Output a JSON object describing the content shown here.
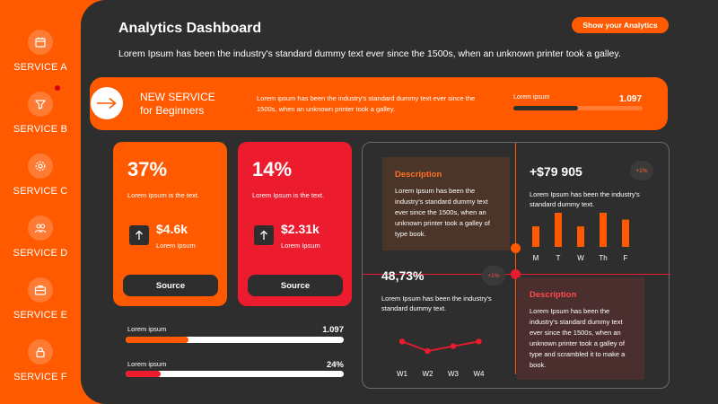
{
  "sidebar": {
    "items": [
      {
        "label": "SERVICE A",
        "icon": "calendar-icon"
      },
      {
        "label": "SERVICE B",
        "icon": "filter-icon"
      },
      {
        "label": "SERVICE C",
        "icon": "settings-icon"
      },
      {
        "label": "SERVICE D",
        "icon": "users-icon"
      },
      {
        "label": "SERVICE E",
        "icon": "briefcase-icon"
      },
      {
        "label": "SERVICE F",
        "icon": "lock-icon"
      }
    ]
  },
  "header": {
    "title": "Analytics Dashboard",
    "subtitle": "Lorem Ipsum has been the industry's standard dummy text ever since the 1500s, when an unknown printer took a galley.",
    "cta_label": "Show your Analytics"
  },
  "banner": {
    "title_line1": "NEW SERVICE",
    "title_line2": "for Beginners",
    "text": "Lorem ipsum has been the industry's standard dummy text ever since the 1500s, when an unknown printer took a galley.",
    "stat_label": "Lorem ipsum",
    "stat_value": "1.097",
    "progress": 0.5
  },
  "cards": [
    {
      "percent": "37%",
      "text": "Lorem Ipsum is the text.",
      "amount": "$4.6k",
      "amount_label": "Lorem Ipsum",
      "button": "Source",
      "color": "#ff5a00"
    },
    {
      "percent": "14%",
      "text": "Lorem Ipsum is the text.",
      "amount": "$2.31k",
      "amount_label": "Lorem Ipsum",
      "button": "Source",
      "color": "#ec1b2d"
    }
  ],
  "progress_rows": [
    {
      "label": "Lorem ipsum",
      "value": "1.097",
      "fraction": 0.29,
      "color": "#ff5a00"
    },
    {
      "label": "Lorem ipsum",
      "value": "24%",
      "fraction": 0.16,
      "color": "#ec1b2d"
    }
  ],
  "panel": {
    "desc1": {
      "title": "Description",
      "text": "Lorem Ipsum has been the industry's standard dummy text ever since the 1500s, when an unknown printer took a galley of type book."
    },
    "desc2": {
      "title": "Description",
      "text": "Lorem Ipsum has been the industry's standard dummy text ever since the 1500s, when an unknown printer took a galley of type and scrambled it to make a book."
    },
    "metric1": {
      "value": "+$79 905",
      "badge": "+1%",
      "text": "Lorem Ipsum has been the industry's standard dummy text."
    },
    "metric2": {
      "value": "48,73%",
      "badge": "+1%",
      "text": "Lorem Ipsum has been the industry's standard dummy text."
    }
  },
  "chart_data": [
    {
      "type": "bar",
      "categories": [
        "M",
        "T",
        "W",
        "Th",
        "F"
      ],
      "values": [
        3,
        5,
        3,
        5,
        4
      ],
      "ylim": [
        0,
        5
      ],
      "color": "#ff5a00"
    },
    {
      "type": "line",
      "categories": [
        "W1",
        "W2",
        "W3",
        "W4"
      ],
      "values": [
        4,
        2,
        3,
        4
      ],
      "ylim": [
        0,
        5
      ],
      "color": "#ec1b2d"
    }
  ]
}
